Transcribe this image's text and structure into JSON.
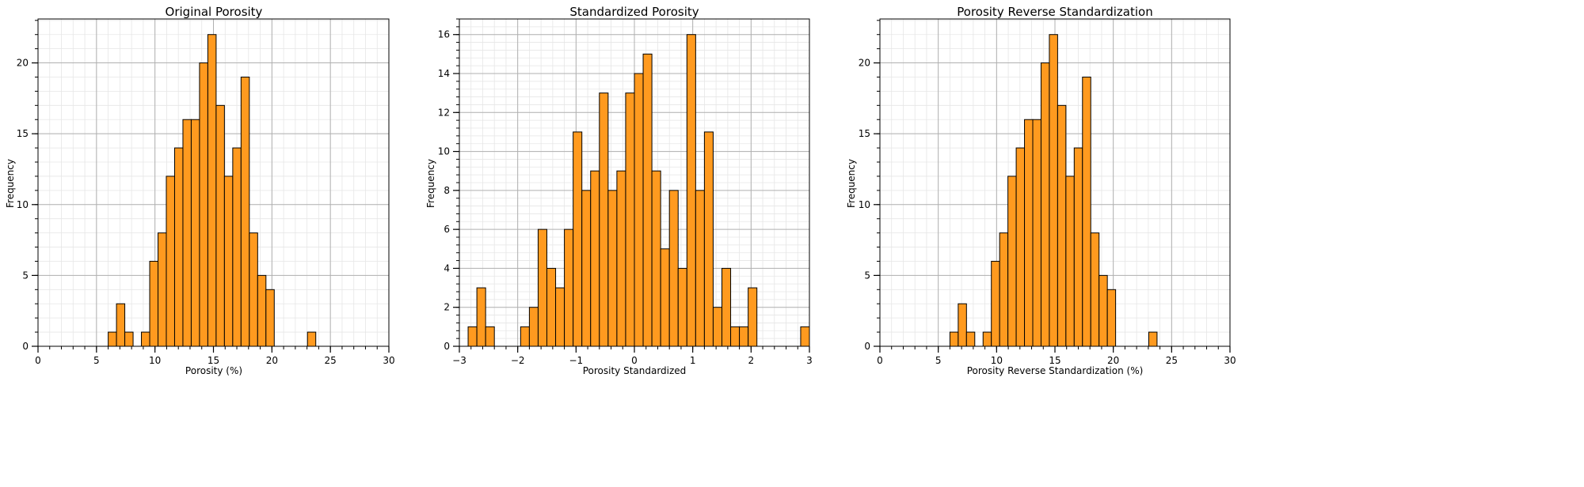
{
  "chart_data": [
    {
      "type": "bar",
      "title": "Original Porosity",
      "xlabel": "Porosity (%)",
      "ylabel": "Frequency",
      "xlim": [
        0,
        30
      ],
      "ylim": [
        0,
        23.1
      ],
      "xticks": [
        0,
        5,
        10,
        15,
        20,
        25,
        30
      ],
      "yticks": [
        0,
        5,
        10,
        15,
        20
      ],
      "grid": true,
      "bar_color": "#ff9a1f",
      "bar_edge_color": "#000000",
      "bins": [
        {
          "x0": 6.0,
          "x1": 6.71,
          "count": 1
        },
        {
          "x0": 6.71,
          "x1": 7.42,
          "count": 3
        },
        {
          "x0": 7.42,
          "x1": 8.13,
          "count": 1
        },
        {
          "x0": 8.13,
          "x1": 8.84,
          "count": 0
        },
        {
          "x0": 8.84,
          "x1": 9.55,
          "count": 1
        },
        {
          "x0": 9.55,
          "x1": 10.26,
          "count": 6
        },
        {
          "x0": 10.26,
          "x1": 10.97,
          "count": 8
        },
        {
          "x0": 10.97,
          "x1": 11.68,
          "count": 12
        },
        {
          "x0": 11.68,
          "x1": 12.39,
          "count": 14
        },
        {
          "x0": 12.39,
          "x1": 13.1,
          "count": 16
        },
        {
          "x0": 13.1,
          "x1": 13.81,
          "count": 16
        },
        {
          "x0": 13.81,
          "x1": 14.52,
          "count": 20
        },
        {
          "x0": 14.52,
          "x1": 15.23,
          "count": 22
        },
        {
          "x0": 15.23,
          "x1": 15.94,
          "count": 17
        },
        {
          "x0": 15.94,
          "x1": 16.65,
          "count": 12
        },
        {
          "x0": 16.65,
          "x1": 17.36,
          "count": 14
        },
        {
          "x0": 17.36,
          "x1": 18.07,
          "count": 19
        },
        {
          "x0": 18.07,
          "x1": 18.78,
          "count": 8
        },
        {
          "x0": 18.78,
          "x1": 19.49,
          "count": 5
        },
        {
          "x0": 19.49,
          "x1": 20.2,
          "count": 4
        },
        {
          "x0": 23.04,
          "x1": 23.75,
          "count": 1
        }
      ]
    },
    {
      "type": "bar",
      "title": "Standardized Porosity",
      "xlabel": "Porosity Standardized",
      "ylabel": "Frequency",
      "xlim": [
        -3,
        3
      ],
      "ylim": [
        0,
        16.8
      ],
      "xticks": [
        -3,
        -2,
        -1,
        0,
        1,
        2,
        3
      ],
      "xtick_labels": [
        "−3",
        "−2",
        "−1",
        "0",
        "1",
        "2",
        "3"
      ],
      "yticks": [
        0,
        2,
        4,
        6,
        8,
        10,
        12,
        14,
        16
      ],
      "grid": true,
      "bar_color": "#ff9a1f",
      "bar_edge_color": "#000000",
      "bins": [
        {
          "x0": -2.85,
          "x1": -2.7,
          "count": 1
        },
        {
          "x0": -2.7,
          "x1": -2.55,
          "count": 3
        },
        {
          "x0": -2.55,
          "x1": -2.4,
          "count": 1
        },
        {
          "x0": -1.95,
          "x1": -1.8,
          "count": 1
        },
        {
          "x0": -1.8,
          "x1": -1.65,
          "count": 2
        },
        {
          "x0": -1.65,
          "x1": -1.5,
          "count": 6
        },
        {
          "x0": -1.5,
          "x1": -1.35,
          "count": 4
        },
        {
          "x0": -1.35,
          "x1": -1.2,
          "count": 3
        },
        {
          "x0": -1.2,
          "x1": -1.05,
          "count": 6
        },
        {
          "x0": -1.05,
          "x1": -0.9,
          "count": 11
        },
        {
          "x0": -0.9,
          "x1": -0.75,
          "count": 8
        },
        {
          "x0": -0.75,
          "x1": -0.6,
          "count": 9
        },
        {
          "x0": -0.6,
          "x1": -0.45,
          "count": 13
        },
        {
          "x0": -0.45,
          "x1": -0.3,
          "count": 8
        },
        {
          "x0": -0.3,
          "x1": -0.15,
          "count": 9
        },
        {
          "x0": -0.15,
          "x1": 0.0,
          "count": 13
        },
        {
          "x0": 0.0,
          "x1": 0.15,
          "count": 14
        },
        {
          "x0": 0.15,
          "x1": 0.3,
          "count": 15
        },
        {
          "x0": 0.3,
          "x1": 0.45,
          "count": 9
        },
        {
          "x0": 0.45,
          "x1": 0.6,
          "count": 5
        },
        {
          "x0": 0.6,
          "x1": 0.75,
          "count": 8
        },
        {
          "x0": 0.75,
          "x1": 0.9,
          "count": 4
        },
        {
          "x0": 0.9,
          "x1": 1.05,
          "count": 16
        },
        {
          "x0": 1.05,
          "x1": 1.2,
          "count": 8
        },
        {
          "x0": 1.2,
          "x1": 1.35,
          "count": 11
        },
        {
          "x0": 1.35,
          "x1": 1.5,
          "count": 2
        },
        {
          "x0": 1.5,
          "x1": 1.65,
          "count": 4
        },
        {
          "x0": 1.65,
          "x1": 1.8,
          "count": 1
        },
        {
          "x0": 1.8,
          "x1": 1.95,
          "count": 1
        },
        {
          "x0": 1.95,
          "x1": 2.1,
          "count": 3
        },
        {
          "x0": 2.85,
          "x1": 3.0,
          "count": 1
        }
      ]
    },
    {
      "type": "bar",
      "title": "Porosity Reverse Standardization",
      "xlabel": "Porosity Reverse Standardization (%)",
      "ylabel": "Frequency",
      "xlim": [
        0,
        30
      ],
      "ylim": [
        0,
        23.1
      ],
      "xticks": [
        0,
        5,
        10,
        15,
        20,
        25,
        30
      ],
      "yticks": [
        0,
        5,
        10,
        15,
        20
      ],
      "grid": true,
      "bar_color": "#ff9a1f",
      "bar_edge_color": "#000000",
      "bins": [
        {
          "x0": 6.0,
          "x1": 6.71,
          "count": 1
        },
        {
          "x0": 6.71,
          "x1": 7.42,
          "count": 3
        },
        {
          "x0": 7.42,
          "x1": 8.13,
          "count": 1
        },
        {
          "x0": 8.13,
          "x1": 8.84,
          "count": 0
        },
        {
          "x0": 8.84,
          "x1": 9.55,
          "count": 1
        },
        {
          "x0": 9.55,
          "x1": 10.26,
          "count": 6
        },
        {
          "x0": 10.26,
          "x1": 10.97,
          "count": 8
        },
        {
          "x0": 10.97,
          "x1": 11.68,
          "count": 12
        },
        {
          "x0": 11.68,
          "x1": 12.39,
          "count": 14
        },
        {
          "x0": 12.39,
          "x1": 13.1,
          "count": 16
        },
        {
          "x0": 13.1,
          "x1": 13.81,
          "count": 16
        },
        {
          "x0": 13.81,
          "x1": 14.52,
          "count": 20
        },
        {
          "x0": 14.52,
          "x1": 15.23,
          "count": 22
        },
        {
          "x0": 15.23,
          "x1": 15.94,
          "count": 17
        },
        {
          "x0": 15.94,
          "x1": 16.65,
          "count": 12
        },
        {
          "x0": 16.65,
          "x1": 17.36,
          "count": 14
        },
        {
          "x0": 17.36,
          "x1": 18.07,
          "count": 19
        },
        {
          "x0": 18.07,
          "x1": 18.78,
          "count": 8
        },
        {
          "x0": 18.78,
          "x1": 19.49,
          "count": 5
        },
        {
          "x0": 19.49,
          "x1": 20.2,
          "count": 4
        },
        {
          "x0": 23.04,
          "x1": 23.75,
          "count": 1
        }
      ]
    }
  ]
}
